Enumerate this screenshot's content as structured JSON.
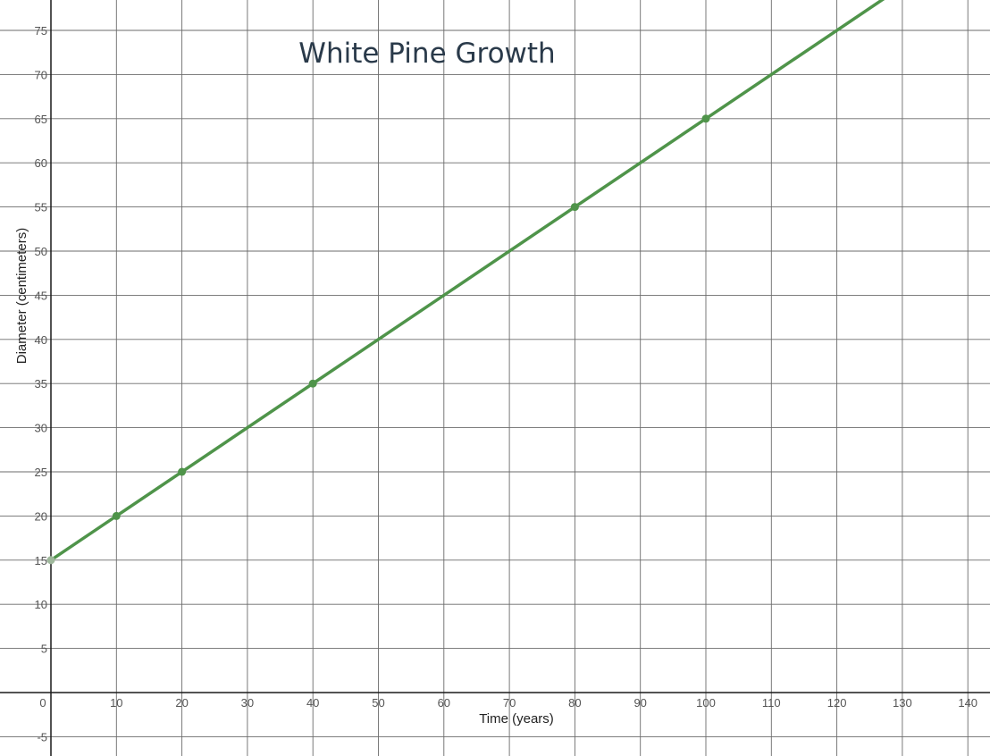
{
  "chart_data": {
    "type": "line",
    "title": "White Pine Growth",
    "xlabel": "Time (years)",
    "ylabel": "Diameter (centimeters)",
    "xlim": [
      0,
      140
    ],
    "ylim": [
      -5,
      75
    ],
    "x_ticks": [
      0,
      10,
      20,
      30,
      40,
      50,
      60,
      70,
      80,
      90,
      100,
      110,
      120,
      130,
      140
    ],
    "y_ticks": [
      -5,
      5,
      10,
      15,
      20,
      25,
      30,
      35,
      40,
      45,
      50,
      55,
      60,
      65,
      70,
      75
    ],
    "grid": true,
    "line_color": "#4f944a",
    "points": [
      {
        "x": 0,
        "y": 15,
        "color": "#9fb89c"
      },
      {
        "x": 10,
        "y": 20,
        "color": "#4f944a"
      },
      {
        "x": 20,
        "y": 25,
        "color": "#4f944a"
      },
      {
        "x": 40,
        "y": 35,
        "color": "#4f944a"
      },
      {
        "x": 80,
        "y": 55,
        "color": "#4f944a"
      },
      {
        "x": 100,
        "y": 65,
        "color": "#4f944a"
      }
    ],
    "line_end": {
      "x": 130,
      "y": 80
    }
  }
}
